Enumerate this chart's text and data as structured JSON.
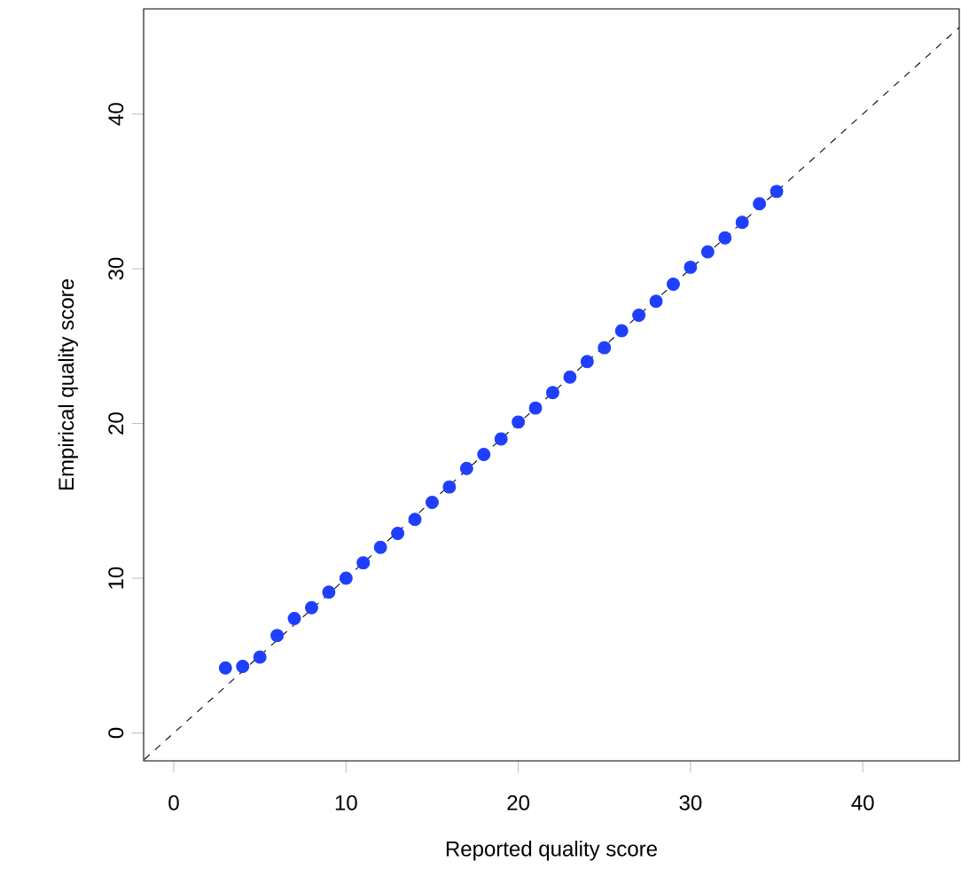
{
  "chart_data": {
    "type": "scatter",
    "xlabel": "Reported quality score",
    "ylabel": "Empirical quality score",
    "xlim": [
      -1.75,
      45.6
    ],
    "ylim": [
      -1.8,
      46.8
    ],
    "xticks": [
      0,
      10,
      20,
      30,
      40
    ],
    "yticks": [
      0,
      10,
      20,
      30,
      40
    ],
    "grid": false,
    "series": [
      {
        "marker": "circle",
        "color": "#1f3fff",
        "x": [
          3,
          4,
          5,
          6,
          7,
          8,
          9,
          10,
          11,
          12,
          13,
          14,
          15,
          16,
          17,
          18,
          19,
          20,
          21,
          22,
          23,
          24,
          25,
          26,
          27,
          28,
          29,
          30,
          31,
          32,
          33,
          34,
          35
        ],
        "values": [
          4.2,
          4.3,
          4.9,
          6.3,
          7.4,
          8.1,
          9.1,
          10.0,
          11.0,
          12.0,
          12.9,
          13.8,
          14.9,
          15.9,
          17.1,
          18.0,
          19.0,
          20.1,
          21.0,
          22.0,
          23.0,
          24.0,
          24.9,
          26.0,
          27.0,
          27.9,
          29.0,
          30.1,
          31.1,
          32.0,
          33.0,
          34.2,
          35.0
        ]
      },
      {
        "type": "line",
        "marker": "none",
        "color": "#000000",
        "line_style": "dashed",
        "x": [
          -1.7,
          45.6
        ],
        "values": [
          -1.7,
          45.6
        ]
      }
    ]
  }
}
